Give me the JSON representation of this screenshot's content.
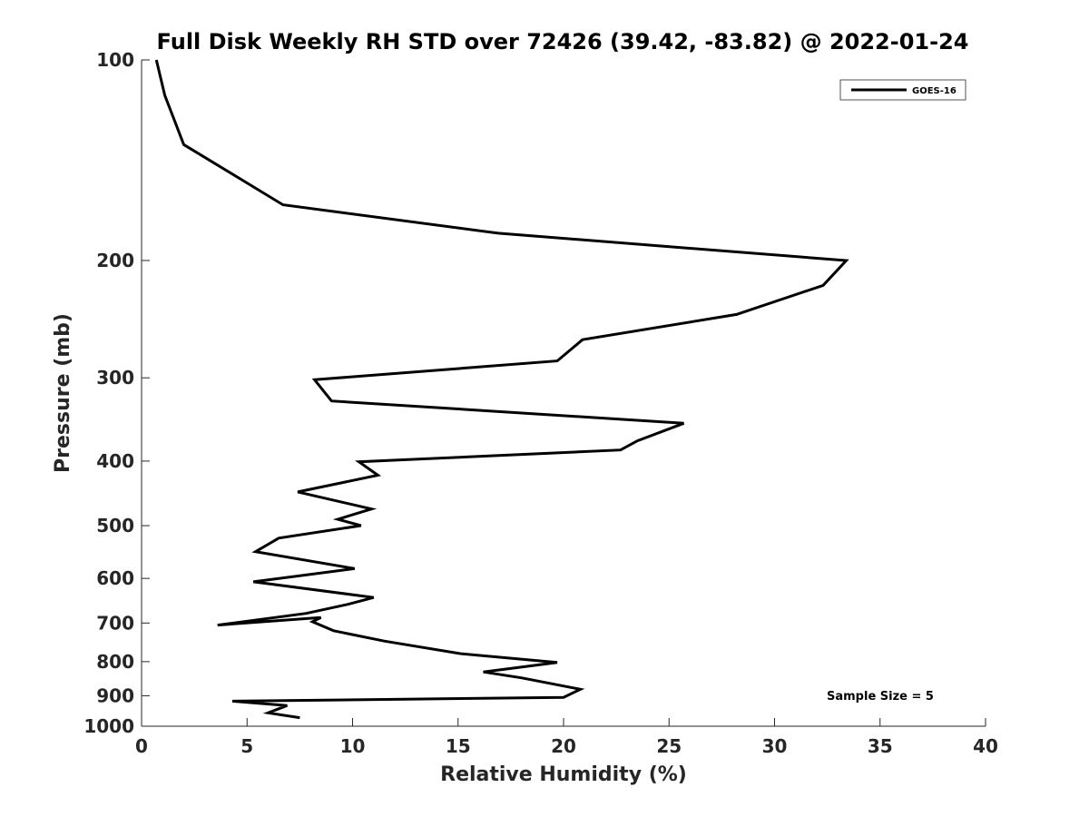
{
  "chart_data": {
    "type": "line",
    "title": "Full Disk Weekly RH STD over 72426 (39.42, -83.82) @ 2022-01-24",
    "xlabel": "Relative Humidity (%)",
    "ylabel": "Pressure (mb)",
    "xlim": [
      0,
      40
    ],
    "ylim": [
      100,
      1000
    ],
    "yscale": "log",
    "y_reversed": true,
    "x_ticks": [
      0,
      5,
      10,
      15,
      20,
      25,
      30,
      35,
      40
    ],
    "x_tick_labels": [
      "0",
      "5",
      "10",
      "15",
      "20",
      "25",
      "30",
      "35",
      "40"
    ],
    "y_ticks": [
      100,
      200,
      300,
      400,
      500,
      600,
      700,
      800,
      900,
      1000
    ],
    "y_tick_labels": [
      "100",
      "200",
      "300",
      "400",
      "500",
      "600",
      "700",
      "800",
      "900",
      "1000"
    ],
    "grid": false,
    "legend_position": "top-right",
    "annotation": "Sample Size = 5",
    "series": [
      {
        "name": "GOES-16",
        "color": "#000000",
        "x": [
          0.7,
          1.1,
          2.0,
          6.7,
          16.9,
          33.4,
          32.3,
          28.2,
          20.9,
          19.7,
          8.2,
          9.0,
          25.7,
          23.5,
          22.7,
          10.3,
          11.2,
          7.4,
          10.9,
          9.3,
          10.4,
          6.5,
          5.4,
          10.1,
          5.3,
          11.0,
          9.8,
          7.8,
          3.6,
          8.5,
          8.1,
          9.1,
          11.5,
          15.1,
          19.7,
          16.2,
          18.0,
          20.8,
          20.0,
          4.3,
          6.9,
          6.0,
          7.5
        ],
        "y": [
          100,
          113,
          134,
          165,
          182,
          200,
          218,
          241,
          263,
          283,
          302,
          325,
          351,
          373,
          385,
          401,
          420,
          445,
          472,
          489,
          500,
          522,
          547,
          580,
          607,
          641,
          656,
          677,
          705,
          687,
          697,
          719,
          745,
          778,
          802,
          829,
          846,
          880,
          905,
          917,
          931,
          955,
          971
        ]
      }
    ]
  }
}
